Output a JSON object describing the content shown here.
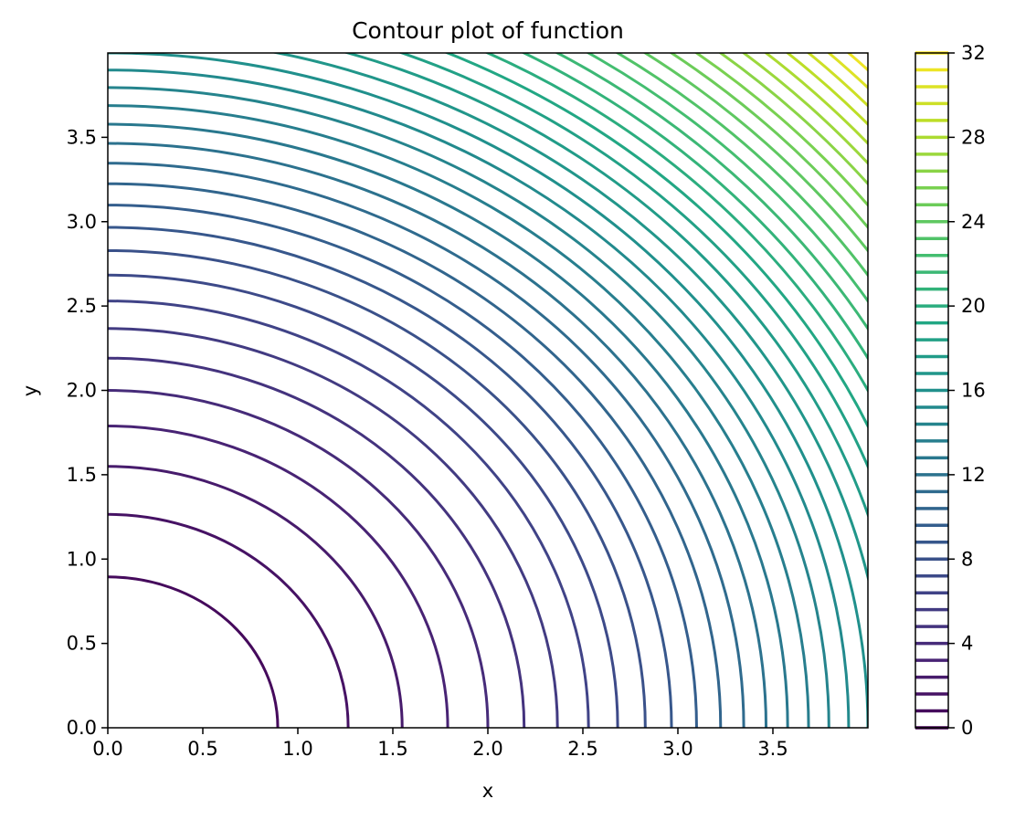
{
  "chart_data": {
    "type": "contour",
    "title": "Contour plot of function",
    "xlabel": "x",
    "ylabel": "y",
    "xlim": [
      0,
      4
    ],
    "ylim": [
      0,
      4
    ],
    "x_ticks": [
      "0.0",
      "0.5",
      "1.0",
      "1.5",
      "2.0",
      "2.5",
      "3.0",
      "3.5"
    ],
    "y_ticks": [
      "0.0",
      "0.5",
      "1.0",
      "1.5",
      "2.0",
      "2.5",
      "3.0",
      "3.5"
    ],
    "function": "x^2 + y^2",
    "levels_min": 0,
    "levels_max": 32,
    "level_step": 0.8,
    "colorbar": {
      "ticks": [
        "0",
        "4",
        "8",
        "12",
        "16",
        "20",
        "24",
        "28",
        "32"
      ],
      "min": 0,
      "max": 32
    },
    "colormap": "viridis",
    "grid": false
  }
}
